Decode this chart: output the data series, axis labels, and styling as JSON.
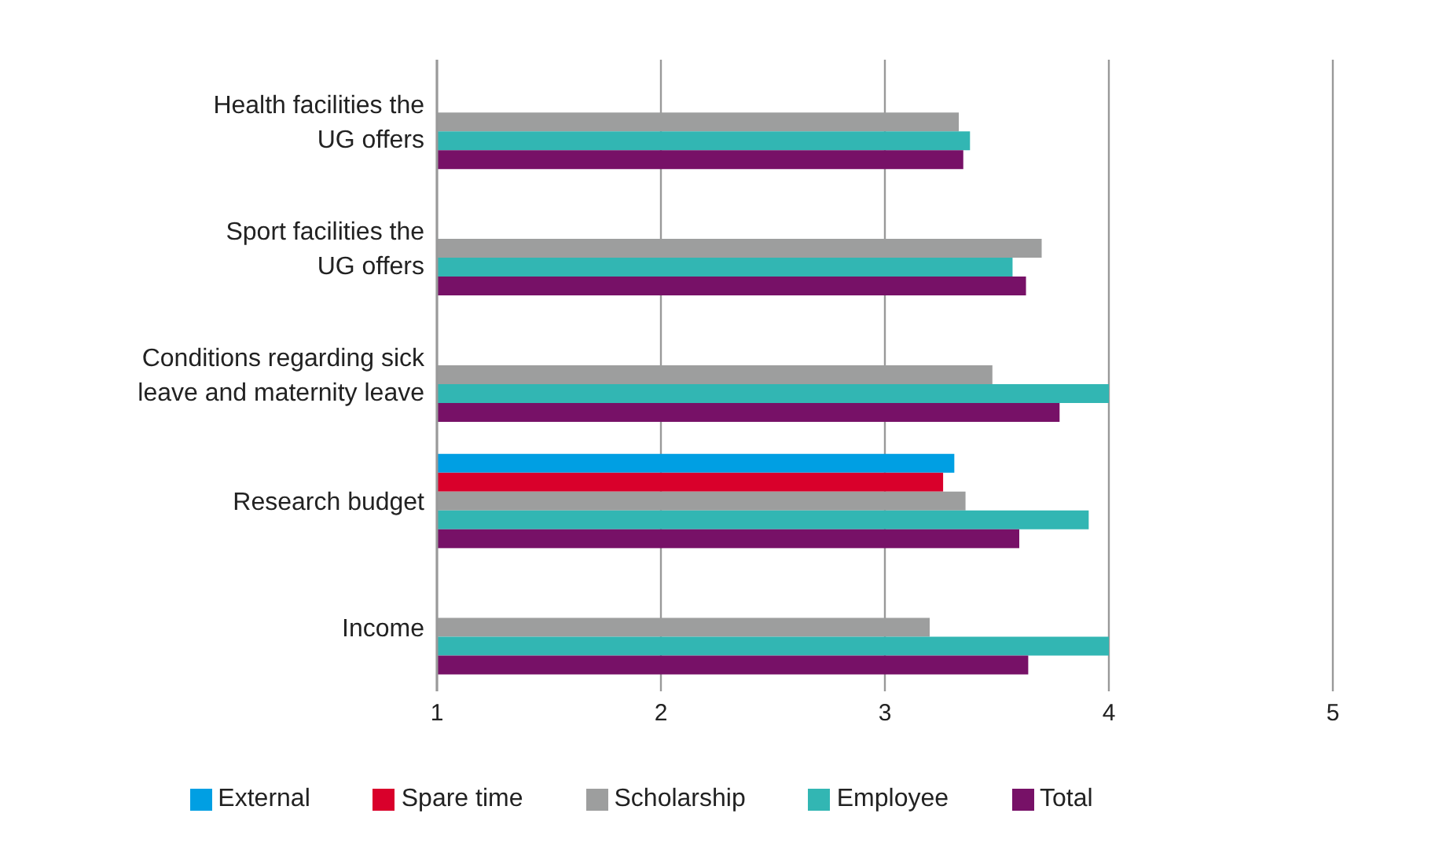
{
  "chart_data": {
    "type": "bar",
    "orientation": "horizontal",
    "categories": [
      "Health facilities the\nUG offers",
      "Sport facilities the\nUG offers",
      "Conditions regarding sick\nleave and maternity leave",
      "Research budget",
      "Income"
    ],
    "series": [
      {
        "name": "External",
        "color": "#009fe3",
        "values": [
          null,
          null,
          null,
          3.31,
          null
        ]
      },
      {
        "name": "Spare time",
        "color": "#d9002b",
        "values": [
          null,
          null,
          null,
          3.26,
          null
        ]
      },
      {
        "name": "Scholarship",
        "color": "#9d9e9e",
        "values": [
          3.33,
          3.7,
          3.48,
          3.36,
          3.2
        ]
      },
      {
        "name": "Employee",
        "color": "#32b6b3",
        "values": [
          3.38,
          3.57,
          4.0,
          3.91,
          4.0
        ]
      },
      {
        "name": "Total",
        "color": "#771167",
        "values": [
          3.35,
          3.63,
          3.78,
          3.6,
          3.64
        ]
      }
    ],
    "xlim": [
      1,
      5
    ],
    "xticks": [
      1,
      2,
      3,
      4,
      5
    ],
    "grid": "x",
    "legend": "bottom"
  }
}
